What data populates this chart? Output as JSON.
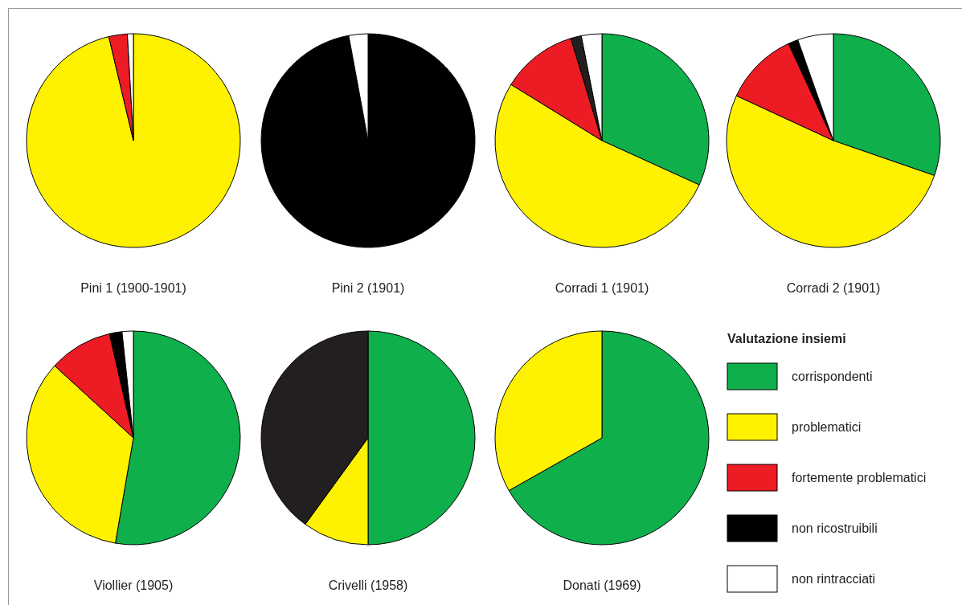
{
  "chart_data": [
    {
      "type": "pie",
      "title": "Pini 1 (1900-1901)",
      "categories": [
        null,
        null,
        null,
        null,
        null
      ],
      "values": [
        0,
        96.3,
        2.8,
        0,
        0.9
      ],
      "colors": [
        "#0faf4b",
        "#fff200",
        "#ed1c24",
        "#000000",
        "#ffffff"
      ]
    },
    {
      "type": "pie",
      "title": "Pini 2 (1901)",
      "categories": [
        null,
        null,
        null,
        null,
        null
      ],
      "values": [
        0,
        0,
        0,
        97.1,
        2.9
      ],
      "colors": [
        "#0faf4b",
        "#fff200",
        "#ed1c24",
        "#000000",
        "#ffffff"
      ]
    },
    {
      "type": "pie",
      "title": "Corradi 1 (1901)",
      "categories": [
        null,
        null,
        null,
        null,
        null
      ],
      "values": [
        31.8,
        52.0,
        11.5,
        1.6,
        3.1
      ],
      "colors": [
        "#0faf4b",
        "#fff200",
        "#ed1c24",
        "#231f20",
        "#ffffff"
      ]
    },
    {
      "type": "pie",
      "title": "Corradi 2 (1901)",
      "categories": [
        null,
        null,
        null,
        null,
        null
      ],
      "values": [
        30.3,
        51.6,
        11.2,
        1.5,
        5.4
      ],
      "colors": [
        "#0faf4b",
        "#fff200",
        "#ed1c24",
        "#000000",
        "#ffffff"
      ]
    },
    {
      "type": "pie",
      "title": "Viollier (1905)",
      "categories": [
        null,
        null,
        null,
        null,
        null
      ],
      "values": [
        52.7,
        34.1,
        9.6,
        1.9,
        1.7
      ],
      "colors": [
        "#0faf4b",
        "#fff200",
        "#ed1c24",
        "#000000",
        "#ffffff"
      ]
    },
    {
      "type": "pie",
      "title": "Crivelli (1958)",
      "categories": [
        null,
        null,
        null,
        null,
        null
      ],
      "values": [
        50,
        10,
        0,
        40,
        0
      ],
      "colors": [
        "#0faf4b",
        "#fff200",
        "#ed1c24",
        "#231f20",
        "#ffffff"
      ]
    },
    {
      "type": "pie",
      "title": "Donati (1969)",
      "categories": [
        "corrispondenti",
        "problematici",
        "fortemente problematici",
        "non ricostruibili",
        "non rintracciati"
      ],
      "values": [
        66.8,
        33.2,
        0,
        0,
        0
      ],
      "colors": [
        "#0faf4b",
        "#fff200",
        "#ed1c24",
        "#000000",
        "#ffffff"
      ],
      "legend": "right",
      "legend_title": "Valutazione insiemi"
    }
  ]
}
